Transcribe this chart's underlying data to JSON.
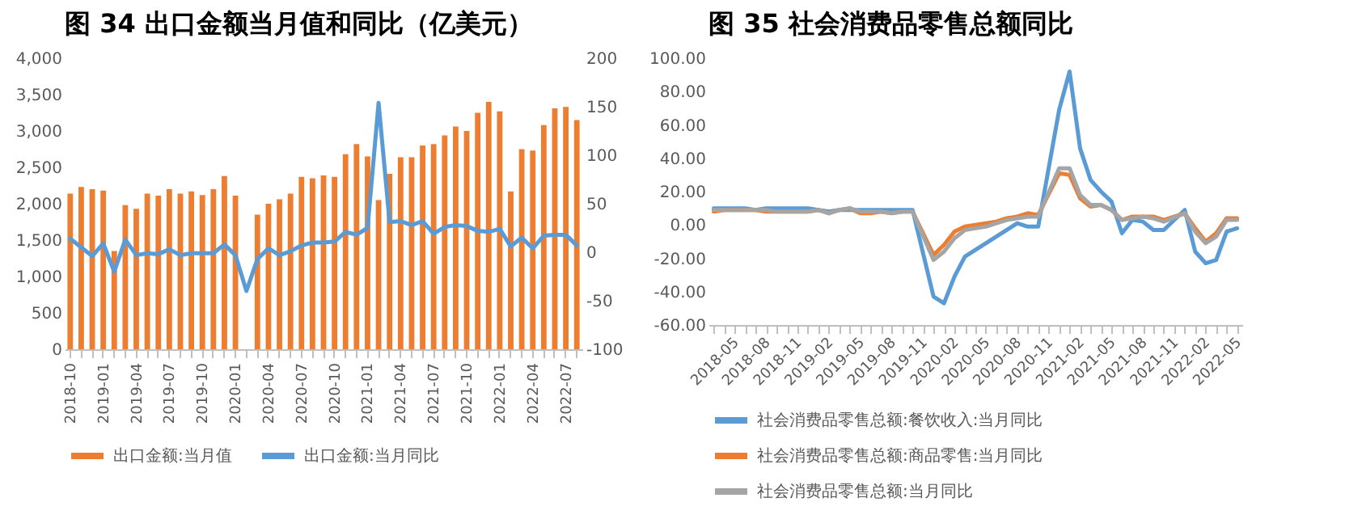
{
  "chart_data": [
    {
      "type": "bar",
      "title": "图 34 出口金额当月值和同比（亿美元）",
      "categories": [
        "2018-10",
        null,
        null,
        "2019-01",
        null,
        null,
        "2019-04",
        null,
        null,
        "2019-07",
        null,
        null,
        "2019-10",
        null,
        null,
        "2020-01",
        null,
        null,
        "2020-04",
        null,
        null,
        "2020-07",
        null,
        null,
        "2020-10",
        null,
        null,
        "2021-01",
        null,
        null,
        "2021-04",
        null,
        null,
        "2021-07",
        null,
        null,
        "2021-10",
        null,
        null,
        "2022-01",
        null,
        null,
        "2022-04",
        null,
        null,
        "2022-07",
        null
      ],
      "series": [
        {
          "name": "出口金额:当月值",
          "color": "#ed7d31",
          "values": [
            2140,
            2230,
            2200,
            2180,
            1350,
            1980,
            1930,
            2140,
            2110,
            2200,
            2140,
            2170,
            2120,
            2200,
            2380,
            2110,
            null,
            1850,
            2000,
            2060,
            2140,
            2370,
            2350,
            2390,
            2370,
            2680,
            2820,
            2650,
            2050,
            2410,
            2640,
            2640,
            2800,
            2820,
            2940,
            3060,
            3000,
            3250,
            3400,
            3270,
            2170,
            2750,
            2730,
            3080,
            3310,
            3330,
            3150
          ]
        },
        {
          "name": "出口金额:当月同比",
          "type": "line",
          "axis": "y2",
          "color": "#5b9bd5",
          "values": [
            14,
            5,
            -4,
            9,
            -20,
            13,
            -3,
            -1,
            -2,
            3,
            -3,
            -1,
            -1,
            -1,
            8,
            -3,
            -40,
            -7,
            4,
            -3,
            1,
            7,
            10,
            10,
            11,
            21,
            18,
            25,
            154,
            31,
            32,
            28,
            32,
            19,
            26,
            28,
            27,
            22,
            21,
            24,
            6,
            15,
            4,
            17,
            18,
            18,
            7
          ]
        }
      ],
      "ylim": [
        0,
        4000
      ],
      "yticks": [
        {
          "value": 0,
          "label": "0"
        },
        {
          "value": 500,
          "label": "500"
        },
        {
          "value": 1000,
          "label": "1,000"
        },
        {
          "value": 1500,
          "label": "1,500"
        },
        {
          "value": 2000,
          "label": "2,000"
        },
        {
          "value": 2500,
          "label": "2,500"
        },
        {
          "value": 3000,
          "label": "3,000"
        },
        {
          "value": 3500,
          "label": "3,500"
        },
        {
          "value": 4000,
          "label": "4,000"
        }
      ],
      "y2lim": [
        -100,
        200
      ],
      "y2ticks": [
        -100,
        -50,
        0,
        50,
        100,
        150,
        200
      ],
      "legend": "bottom"
    },
    {
      "type": "line",
      "title": "图 35 社会消费品零售总额同比",
      "categories": [
        "2018-05",
        null,
        null,
        "2018-08",
        null,
        null,
        "2018-11",
        null,
        null,
        "2019-02",
        null,
        null,
        "2019-05",
        null,
        null,
        "2019-08",
        null,
        null,
        "2019-11",
        null,
        null,
        "2020-02",
        null,
        null,
        "2020-05",
        null,
        null,
        "2020-08",
        null,
        null,
        "2020-11",
        null,
        null,
        "2021-02",
        null,
        null,
        "2021-05",
        null,
        null,
        "2021-08",
        null,
        null,
        "2021-11",
        null,
        null,
        "2022-02",
        null,
        null,
        "2022-05",
        null,
        null
      ],
      "series": [
        {
          "name": "社会消费品零售总额:餐饮收入:当月同比",
          "color": "#5b9bd5",
          "values": [
            10,
            10,
            10,
            10,
            9,
            10,
            10,
            10,
            null,
            10,
            9,
            8,
            9,
            9,
            9,
            9,
            9,
            9,
            9,
            9,
            null,
            -43,
            -47,
            -31,
            -19,
            -15,
            -11,
            -7,
            -3,
            1,
            -1,
            -1,
            null,
            69,
            92,
            46,
            27,
            20,
            14,
            -5,
            3,
            2,
            -3,
            -3,
            null,
            9,
            -16,
            -23,
            -21,
            -4,
            -2
          ]
        },
        {
          "name": "社会消费品零售总额:商品零售:当月同比",
          "color": "#ed7d31",
          "values": [
            8,
            9,
            9,
            9,
            9,
            8,
            8,
            8,
            null,
            8,
            9,
            7,
            9,
            10,
            7,
            7,
            8,
            7,
            8,
            8,
            null,
            -18,
            -12,
            -4,
            -1,
            0,
            1,
            2,
            4,
            5,
            7,
            6,
            null,
            31,
            30,
            16,
            11,
            12,
            9,
            3,
            5,
            5,
            5,
            3,
            null,
            7,
            -2,
            -10,
            -5,
            4,
            4
          ]
        },
        {
          "name": "社会消费品零售总额:当月同比",
          "color": "#a5a5a5",
          "values": [
            9,
            9,
            9,
            9,
            9,
            9,
            8,
            8,
            null,
            8,
            9,
            7,
            9,
            10,
            8,
            8,
            8,
            7,
            8,
            8,
            null,
            -21,
            -16,
            -8,
            -3,
            -2,
            -1,
            1,
            3,
            4,
            5,
            5,
            null,
            34,
            34,
            18,
            12,
            12,
            9,
            3,
            4,
            5,
            4,
            2,
            null,
            7,
            -4,
            -11,
            -7,
            3,
            3
          ]
        }
      ],
      "ylim": [
        -60,
        100
      ],
      "yticks": [
        {
          "value": -60,
          "label": "-60.00"
        },
        {
          "value": -40,
          "label": "-40.00"
        },
        {
          "value": -20,
          "label": "-20.00"
        },
        {
          "value": 0,
          "label": "0.00"
        },
        {
          "value": 20,
          "label": "20.00"
        },
        {
          "value": 40,
          "label": "40.00"
        },
        {
          "value": 60,
          "label": "60.00"
        },
        {
          "value": 80,
          "label": "80.00"
        },
        {
          "value": 100,
          "label": "100.00"
        }
      ],
      "legend": "bottom"
    }
  ]
}
